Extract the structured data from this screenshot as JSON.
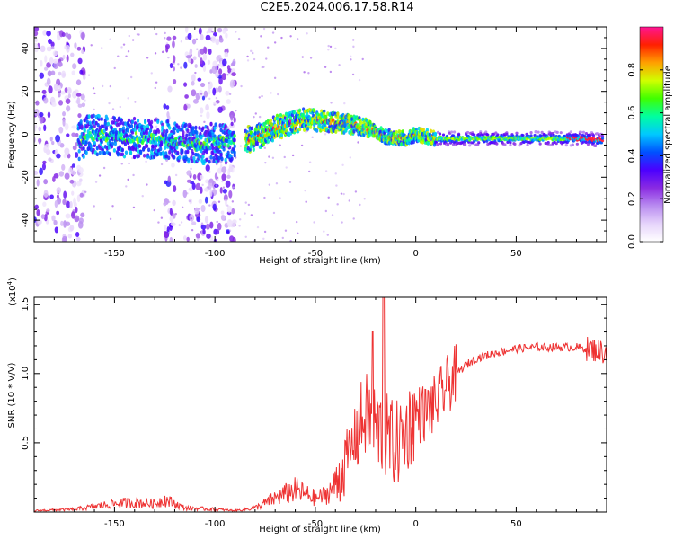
{
  "title": "C2E5.2024.006.17.58.R14",
  "colors": {
    "snr_line": "#ee3333",
    "axis": "#000000",
    "colormap": [
      "#ffffff",
      "#e6d4fb",
      "#b98cf0",
      "#8a2be2",
      "#4b00ff",
      "#0050ff",
      "#00c8ff",
      "#00ffa0",
      "#40ff00",
      "#d0ff00",
      "#ffa000",
      "#ff2000",
      "#ff1493"
    ]
  },
  "chart_data": [
    {
      "type": "heatmap",
      "title": "",
      "xlabel": "Height of straight line (km)",
      "ylabel": "Frequency (Hz)",
      "xlim": [
        -190,
        95
      ],
      "ylim": [
        -50,
        50
      ],
      "xticks": [
        -150,
        -100,
        -50,
        0,
        50
      ],
      "xtick_labels": [
        "-150",
        "-100",
        "-50",
        "0",
        "50"
      ],
      "yticks": [
        -40,
        -20,
        0,
        20,
        40
      ],
      "ytick_labels": [
        "-40",
        "-20",
        "0",
        "20",
        "40"
      ],
      "colorbar": {
        "label": "Normalized spectral amplitude",
        "range": [
          0,
          1
        ],
        "ticks": [
          0.0,
          0.2,
          0.4,
          0.6,
          0.8
        ],
        "tick_labels": [
          "0.0",
          "0.2",
          "0.4",
          "0.6",
          "0.8"
        ]
      },
      "features": {
        "ridge": [
          [
            -165,
            0
          ],
          [
            -120,
            -3
          ],
          [
            -110,
            -5
          ],
          [
            -90,
            -3
          ],
          [
            -80,
            -2
          ],
          [
            -70,
            3
          ],
          [
            -55,
            7
          ],
          [
            -45,
            6
          ],
          [
            -35,
            5
          ],
          [
            -25,
            3
          ],
          [
            -15,
            -1
          ],
          [
            -5,
            -2
          ],
          [
            0,
            0
          ],
          [
            10,
            -2
          ],
          [
            30,
            -2
          ],
          [
            60,
            -2
          ],
          [
            85,
            -2
          ],
          [
            93,
            -3
          ]
        ],
        "noise_bands": [
          [
            -190,
            -165
          ],
          [
            -125,
            -120
          ],
          [
            -115,
            -90
          ]
        ]
      }
    },
    {
      "type": "line",
      "title": "",
      "xlabel": "Height of straight line (km)",
      "ylabel": "SNR (10 * V/V)",
      "yscale_label": "(x10",
      "yscale_exponent": "4",
      "yscale_suffix": ")",
      "xlim": [
        -190,
        95
      ],
      "ylim": [
        0,
        1.55
      ],
      "xticks": [
        -150,
        -100,
        -50,
        0,
        50
      ],
      "xtick_labels": [
        "-150",
        "-100",
        "-50",
        "0",
        "50"
      ],
      "yticks": [
        0.5,
        1.0,
        1.5
      ],
      "ytick_labels": [
        "0.5",
        "1.0",
        "1.5"
      ],
      "series": [
        {
          "x": [
            -190,
            -170,
            -160,
            -150,
            -140,
            -130,
            -125,
            -115,
            -100,
            -90,
            -80,
            -70,
            -60,
            -50,
            -45,
            -40,
            -35,
            -30,
            -25,
            -20,
            -15,
            -10,
            -5,
            0,
            5,
            10,
            15,
            20,
            25,
            30,
            40,
            50,
            60,
            70,
            80,
            85,
            90,
            95
          ],
          "y": [
            0.01,
            0.02,
            0.04,
            0.06,
            0.07,
            0.06,
            0.09,
            0.03,
            0.02,
            0.01,
            0.03,
            0.1,
            0.16,
            0.1,
            0.12,
            0.2,
            0.35,
            0.55,
            0.7,
            0.62,
            0.55,
            0.48,
            0.58,
            0.7,
            0.72,
            0.78,
            0.9,
            1.0,
            1.06,
            1.11,
            1.15,
            1.18,
            1.19,
            1.19,
            1.19,
            1.18,
            1.17,
            1.15
          ]
        }
      ]
    }
  ]
}
